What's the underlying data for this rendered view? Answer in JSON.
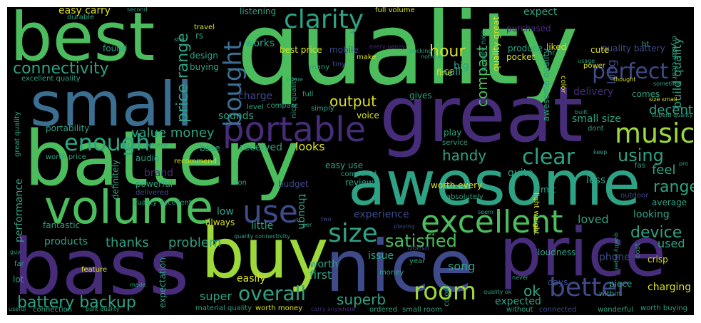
{
  "colors": {
    "background": "#000000",
    "green": "#4bbd5c",
    "lightgreen": "#9dd93b",
    "teal": "#2ea284",
    "blue": "#3b6f91",
    "purple": "#472c7a",
    "navy": "#3e4a89",
    "yellow": "#dbe11f"
  },
  "words": {
    "quality": "quality",
    "battery": "battery",
    "best": "best",
    "small": "small",
    "great": "great",
    "awesome": "awesome",
    "bass": "bass",
    "buy": "buy",
    "nice": "nice",
    "price": "price",
    "volume": "volume",
    "portable": "portable",
    "excellent": "excellent",
    "music": "music",
    "clarity": "clarity",
    "perfect": "perfect",
    "connectivity": "connectivity",
    "bought": "bought",
    "enough": "enough",
    "use": "use",
    "size": "size",
    "better": "better",
    "room": "room",
    "overall": "overall",
    "clear": "clear",
    "satisfied": "satisfied",
    "battery_backup": "battery backup",
    "value_money": "value money",
    "price_range": "price range",
    "hour": "hour",
    "compact": "compact",
    "output": "output",
    "device": "device",
    "range": "range",
    "decent": "decent",
    "handy": "handy",
    "using": "using",
    "feel": "feel",
    "thanks": "thanks",
    "problem": "problem",
    "superb": "superb",
    "ok": "ok",
    "charging": "charging",
    "easy_carry": "easy carry",
    "works": "works",
    "mobile": "mobile",
    "big": "big",
    "expect": "expect",
    "quality_battery": "quality battery",
    "cute": "cute",
    "long": "long",
    "build_quality": "build quality",
    "charge": "charge",
    "delivery": "delivery",
    "sounds": "sounds",
    "small_size": "small size",
    "looks": "looks",
    "received": "received",
    "brand": "brand",
    "little": "little",
    "loved": "loved",
    "looking": "looking",
    "experience": "experience",
    "low": "low",
    "performance": "performance",
    "products": "products",
    "super": "super",
    "easily": "easily",
    "first": "first",
    "worth": "worth",
    "song": "song",
    "expected": "expected",
    "used": "used",
    "days": "days",
    "call": "call",
    "fine": "fine",
    "quite": "quite",
    "budget": "budget",
    "less": "less",
    "mic": "mic",
    "base": "base",
    "definitely": "definitely",
    "fantastic": "fantastic",
    "portability": "portability",
    "design": "design",
    "buying": "buying",
    "found": "found",
    "listening": "listening",
    "durable": "durable",
    "travel": "travel",
    "best_price": "best price",
    "full_volume": "full volume",
    "purchased": "purchased",
    "liked": "liked",
    "make": "make",
    "tiny": "tiny",
    "produce": "produce",
    "pocket": "pocket",
    "hr": "hr",
    "color": "color",
    "bt": "bt",
    "power": "power",
    "quality_great": "quality great",
    "quality_nice": "quality nice",
    "awesome_quality": "awesome quality",
    "great_quality": "great quality",
    "excellent_quality": "excellent quality",
    "quality_excellent": "quality excellent",
    "crystal_clear": "crystal clear",
    "nice_quality": "nice quality",
    "compare": "compare",
    "level": "level",
    "gives": "gives",
    "voice": "voice",
    "simply": "simply",
    "full": "full",
    "comes": "comes",
    "dont": "dont",
    "play": "play",
    "service": "service",
    "worth_every": "worth every",
    "review": "review",
    "easy_use": "easy use",
    "compared": "compared",
    "audio": "audio",
    "bit_anywhere": "bit anywhere",
    "worth_price": "worth price",
    "recommend": "recommend",
    "powerful": "powerful",
    "delivered": "delivered",
    "con": "con",
    "though": "though",
    "always": "always",
    "quality_connectivity": "quality connectivity",
    "absolutely": "absolutely",
    "outdoor": "outdoor",
    "average": "average",
    "light_weight": "light weight",
    "seem": "seem",
    "issue": "issue",
    "doesn": "doesn",
    "year": "year",
    "money": "money",
    "phone": "phone",
    "cost": "cost",
    "loudness": "loudness",
    "crisp": "crisp",
    "piece": "piece",
    "within": "within",
    "expectation": "expectation",
    "colour": "colour",
    "feature": "feature",
    "lot": "lot",
    "far": "far",
    "guy": "guy",
    "made": "made",
    "material_quality": "material quality",
    "worth_money": "worth money",
    "carry_anywhere": "carry anywhere",
    "ordered": "ordered",
    "small_room": "small room",
    "without": "without",
    "connected": "connected",
    "wonderful": "wonderful",
    "worth_buying": "worth buying",
    "useful": "useful",
    "connection": "connection",
    "built_quality": "built quality",
    "quality_ok": "quality ok",
    "playing": "playing",
    "per": "per",
    "two": "two",
    "never": "never",
    "keep": "keep",
    "fas": "fas",
    "pro": "pro",
    "second": "second",
    "star": "star",
    "usage": "usage",
    "every_penny": "every penny",
    "nothing": "nothing",
    "packing": "packing",
    "home": "home",
    "many": "many",
    "thought": "thought",
    "sometime": "sometime",
    "size_small": "size small",
    "superb_quality": "superb quality",
    "quality_super": "quality super",
    "built": "built",
    "rs": "rs"
  }
}
